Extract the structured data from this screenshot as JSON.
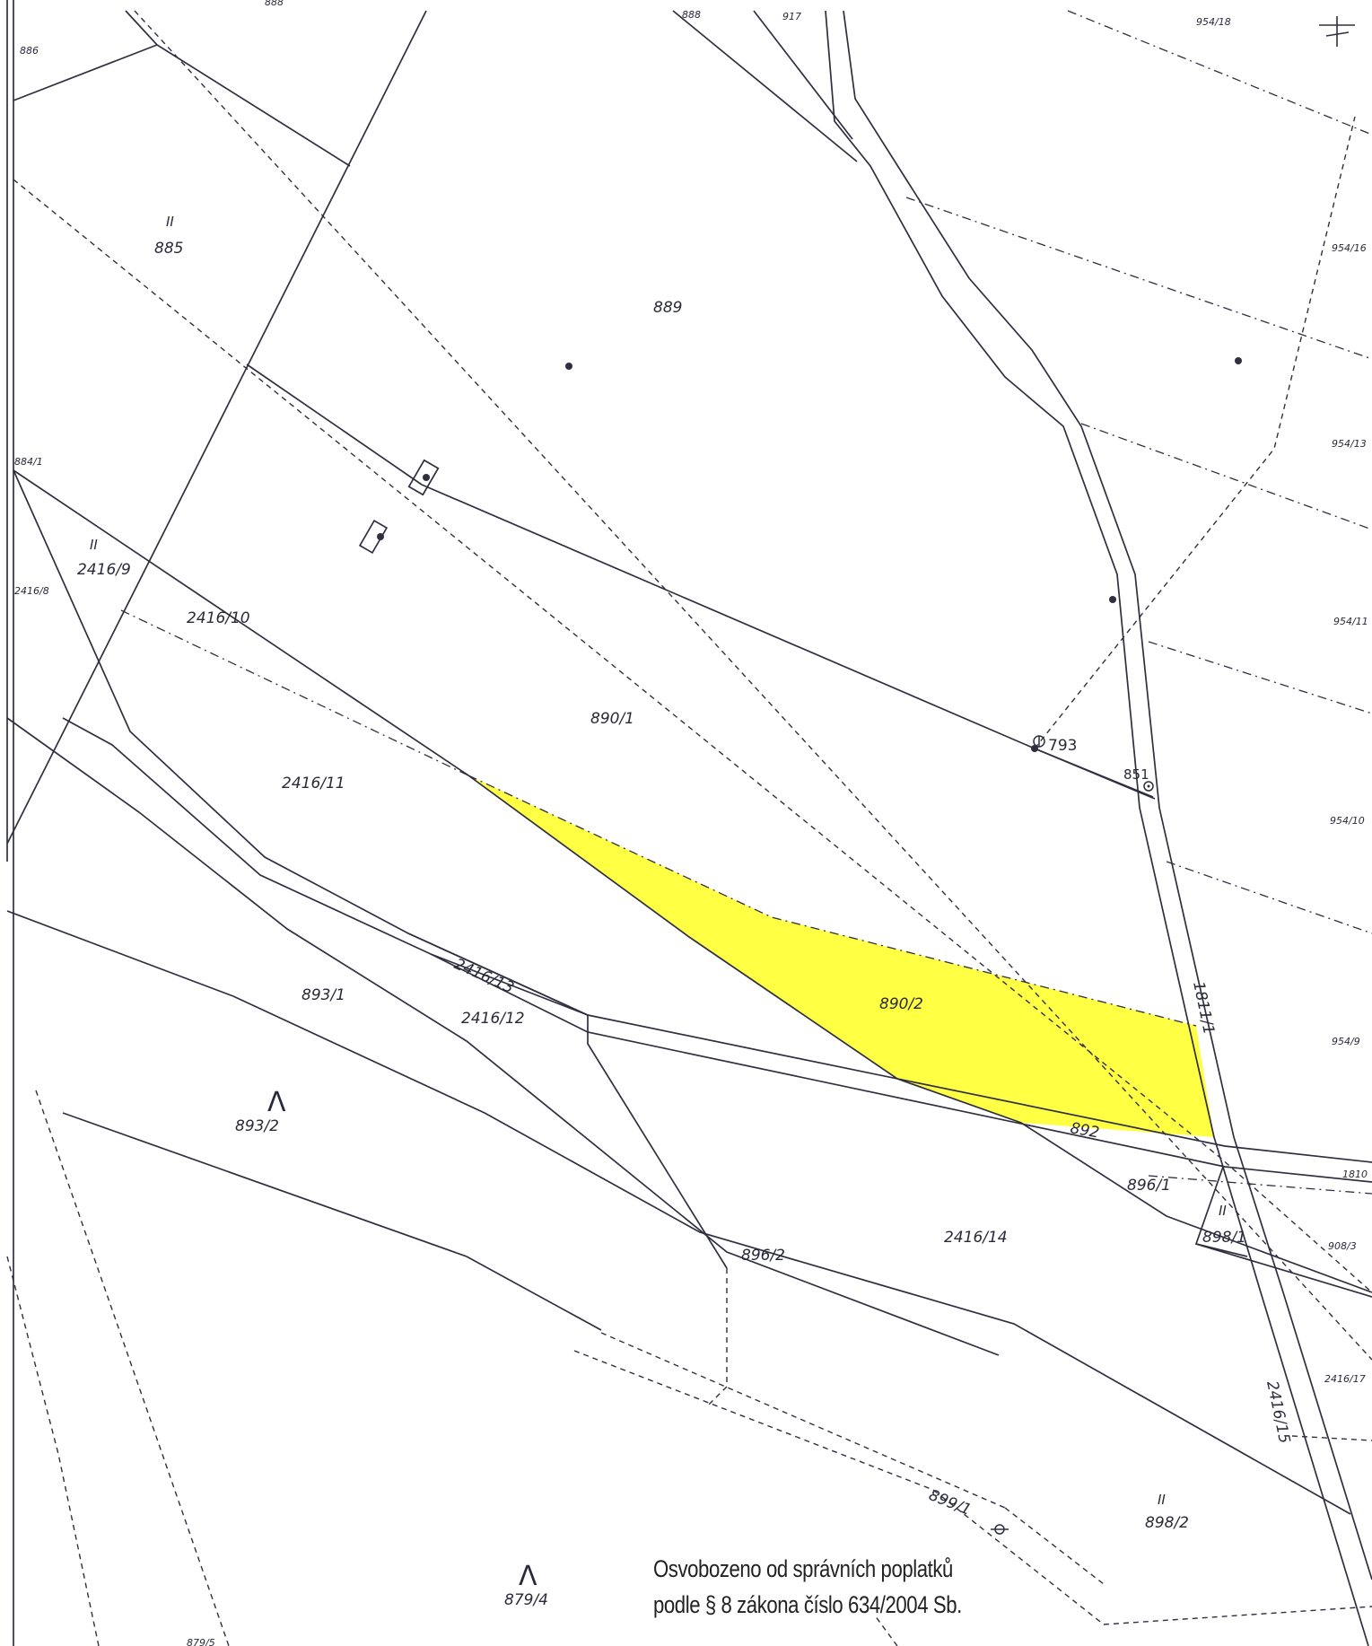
{
  "map": {
    "highlighted_parcel": "890/2",
    "highlight_color": "#ffff44",
    "line_color": "#2a2a3a",
    "parcel_labels": {
      "p886": "886",
      "p888": "888",
      "p917": "917",
      "p954_18": "954/18",
      "p885": "885",
      "p889": "889",
      "p954_16": "954/16",
      "p884_1": "884/1",
      "p954_13": "954/13",
      "p2416_9": "2416/9",
      "p2416_8": "2416/8",
      "p2416_10": "2416/10",
      "p954_11": "954/11",
      "p890_1": "890/1",
      "p2416_11": "2416/11",
      "p793": "793",
      "p851": "851",
      "p954_10": "954/10",
      "p2416_13": "2416/13",
      "p1811_1": "1811/1",
      "p893_1": "893/1",
      "p2416_12": "2416/12",
      "p890_2": "890/2",
      "p954_9": "954/9",
      "p893_2": "893/2",
      "p892": "892",
      "p1810": "1810",
      "p896_1": "896/1",
      "p898_1": "898/1",
      "p2416_14": "2416/14",
      "p908_3": "908/3",
      "p896_2": "896/2",
      "p2416_17": "2416/17",
      "p2416_15": "2416/15",
      "p899_1": "899/1",
      "p898_2": "898/2",
      "p879_4": "879/4",
      "p879_5": "879/5"
    },
    "land_use_marks": {
      "grass": "II",
      "forest": "Λ"
    },
    "north_arrow_icon": "north-arrow-icon"
  },
  "stamp": {
    "line1": "Osvobozeno od správních poplatků",
    "line2": "podle § 8 zákona číslo 634/2004 Sb."
  }
}
